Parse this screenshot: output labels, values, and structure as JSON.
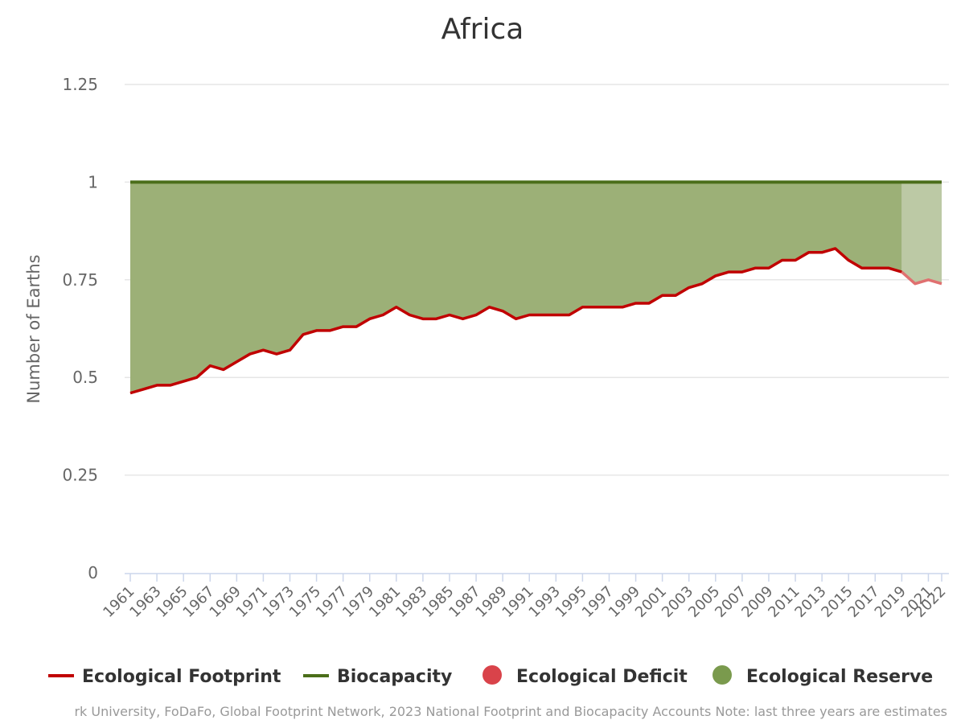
{
  "chart_data": {
    "type": "line",
    "title": "Africa",
    "ylabel": "Number of Earths",
    "xlabel": "",
    "ylim": [
      0,
      1.25
    ],
    "yticks": [
      "0",
      "0.25",
      "0.5",
      "0.75",
      "1",
      "1.25"
    ],
    "ytick_values": [
      0,
      0.25,
      0.5,
      0.75,
      1,
      1.25
    ],
    "grid": true,
    "estimate_start_year": 2019,
    "x": [
      1961,
      1962,
      1963,
      1964,
      1965,
      1966,
      1967,
      1968,
      1969,
      1970,
      1971,
      1972,
      1973,
      1974,
      1975,
      1976,
      1977,
      1978,
      1979,
      1980,
      1981,
      1982,
      1983,
      1984,
      1985,
      1986,
      1987,
      1988,
      1989,
      1990,
      1991,
      1992,
      1993,
      1994,
      1995,
      1996,
      1997,
      1998,
      1999,
      2000,
      2001,
      2002,
      2003,
      2004,
      2005,
      2006,
      2007,
      2008,
      2009,
      2010,
      2011,
      2012,
      2013,
      2014,
      2015,
      2016,
      2017,
      2018,
      2019,
      2020,
      2021,
      2022
    ],
    "series": [
      {
        "name": "Ecological Footprint",
        "color": "#c00000",
        "values": [
          0.46,
          0.47,
          0.48,
          0.48,
          0.49,
          0.5,
          0.53,
          0.52,
          0.54,
          0.56,
          0.57,
          0.56,
          0.57,
          0.61,
          0.62,
          0.62,
          0.63,
          0.63,
          0.65,
          0.66,
          0.68,
          0.66,
          0.65,
          0.65,
          0.66,
          0.65,
          0.66,
          0.68,
          0.67,
          0.65,
          0.66,
          0.66,
          0.66,
          0.66,
          0.68,
          0.68,
          0.68,
          0.68,
          0.69,
          0.69,
          0.71,
          0.71,
          0.73,
          0.74,
          0.76,
          0.77,
          0.77,
          0.78,
          0.78,
          0.8,
          0.8,
          0.82,
          0.82,
          0.83,
          0.8,
          0.78,
          0.78,
          0.78,
          0.77,
          0.74,
          0.75,
          0.74
        ]
      },
      {
        "name": "Biocapacity",
        "color": "#4b6e1a",
        "values": [
          1,
          1,
          1,
          1,
          1,
          1,
          1,
          1,
          1,
          1,
          1,
          1,
          1,
          1,
          1,
          1,
          1,
          1,
          1,
          1,
          1,
          1,
          1,
          1,
          1,
          1,
          1,
          1,
          1,
          1,
          1,
          1,
          1,
          1,
          1,
          1,
          1,
          1,
          1,
          1,
          1,
          1,
          1,
          1,
          1,
          1,
          1,
          1,
          1,
          1,
          1,
          1,
          1,
          1,
          1,
          1,
          1,
          1,
          1,
          1,
          1,
          1
        ]
      }
    ],
    "legend": [
      {
        "label": "Ecological Footprint",
        "kind": "line",
        "color": "#c00000"
      },
      {
        "label": "Biocapacity",
        "kind": "line",
        "color": "#4b6e1a"
      },
      {
        "label": "Ecological Deficit",
        "kind": "dot",
        "color": "#d9434a"
      },
      {
        "label": "Ecological Reserve",
        "kind": "dot",
        "color": "#7a9a4d"
      }
    ],
    "reserve_fill_color": "#9cb077",
    "reserve_fill_estimate_color": "#bcc9a5",
    "credits": "rk University, FoDaFo, Global Footprint Network, 2023 National Footprint and Biocapacity Accounts Note: last three years are estimates"
  }
}
